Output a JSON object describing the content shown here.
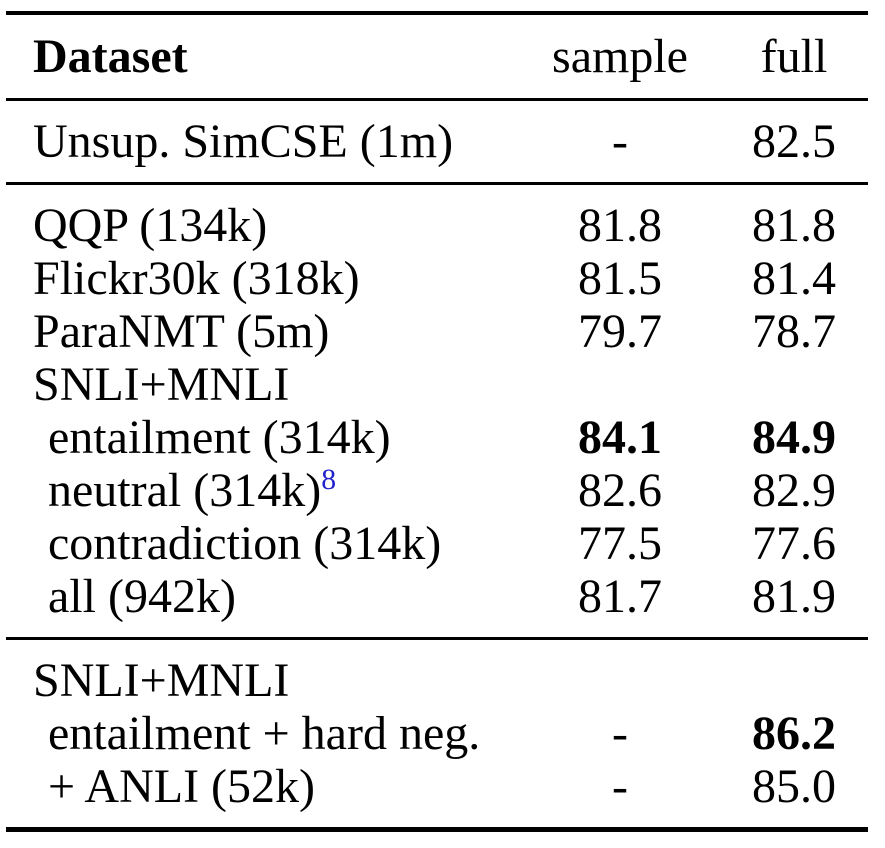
{
  "table": {
    "header": {
      "dataset": "Dataset",
      "sample": "sample",
      "full": "full"
    },
    "sections": [
      {
        "rows": [
          {
            "label": "Unsup. SimCSE (1m)",
            "indent": false,
            "sample": "-",
            "full": "82.5"
          }
        ]
      },
      {
        "rows": [
          {
            "label": "QQP (134k)",
            "indent": false,
            "sample": "81.8",
            "full": "81.8"
          },
          {
            "label": "Flickr30k (318k)",
            "indent": false,
            "sample": "81.5",
            "full": "81.4"
          },
          {
            "label": "ParaNMT (5m)",
            "indent": false,
            "sample": "79.7",
            "full": "78.7"
          },
          {
            "label": "SNLI+MNLI",
            "indent": false,
            "sample": "",
            "full": ""
          },
          {
            "label": "entailment (314k)",
            "indent": true,
            "sample": "84.1",
            "full": "84.9",
            "bold_sample": true,
            "bold_full": true
          },
          {
            "label": "neutral (314k)",
            "superscript": "8",
            "indent": true,
            "sample": "82.6",
            "full": "82.9"
          },
          {
            "label": "contradiction (314k)",
            "indent": true,
            "sample": "77.5",
            "full": "77.6"
          },
          {
            "label": "all (942k)",
            "indent": true,
            "sample": "81.7",
            "full": "81.9"
          }
        ]
      },
      {
        "rows": [
          {
            "label": "SNLI+MNLI",
            "indent": false,
            "sample": "",
            "full": ""
          },
          {
            "label": "entailment + hard neg.",
            "indent": true,
            "sample": "-",
            "full": "86.2",
            "bold_full": true
          },
          {
            "label": "+ ANLI (52k)",
            "indent": true,
            "sample": "-",
            "full": "85.0"
          }
        ]
      }
    ],
    "colors": {
      "text": "#000000",
      "rule": "#000000",
      "background": "#ffffff",
      "footnote_ref": "#2222cc"
    }
  }
}
